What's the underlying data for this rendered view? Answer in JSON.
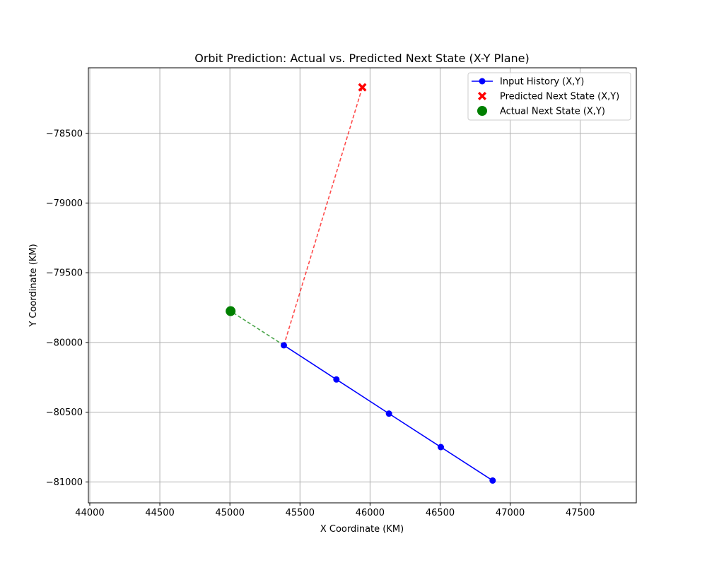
{
  "chart_data": {
    "type": "line",
    "title": "Orbit Prediction: Actual vs. Predicted Next State (X-Y Plane)",
    "xlabel": "X Coordinate (KM)",
    "ylabel": "Y Coordinate (KM)",
    "xlim": [
      43990,
      47900
    ],
    "ylim": [
      -81150,
      -78030
    ],
    "xticks": [
      44000,
      44500,
      45000,
      45500,
      46000,
      46500,
      47000,
      47500
    ],
    "yticks": [
      -78500,
      -79000,
      -79500,
      -80000,
      -80500,
      -81000
    ],
    "grid": true,
    "legend_position": "top-right",
    "series": [
      {
        "name": "Input History (X,Y)",
        "color": "#0000ff",
        "marker": "circle",
        "line": "solid",
        "x": [
          45385,
          45760,
          46135,
          46505,
          46875
        ],
        "y": [
          -80020,
          -80265,
          -80510,
          -80750,
          -80990
        ]
      },
      {
        "name": "Predicted Next State (X,Y)",
        "color": "#ff0000",
        "marker": "X",
        "line": "none",
        "x": [
          45945
        ],
        "y": [
          -78170
        ]
      },
      {
        "name": "Actual Next State (X,Y)",
        "color": "#008000",
        "marker": "circle-large",
        "line": "none",
        "x": [
          45005
        ],
        "y": [
          -79775
        ]
      }
    ],
    "connectors": [
      {
        "from_x": 45385,
        "from_y": -80020,
        "to_x": 45945,
        "to_y": -78170,
        "color": "#ff0000",
        "style": "dashed"
      },
      {
        "from_x": 45385,
        "from_y": -80020,
        "to_x": 45005,
        "to_y": -79775,
        "color": "#008000",
        "style": "dashed"
      }
    ]
  }
}
